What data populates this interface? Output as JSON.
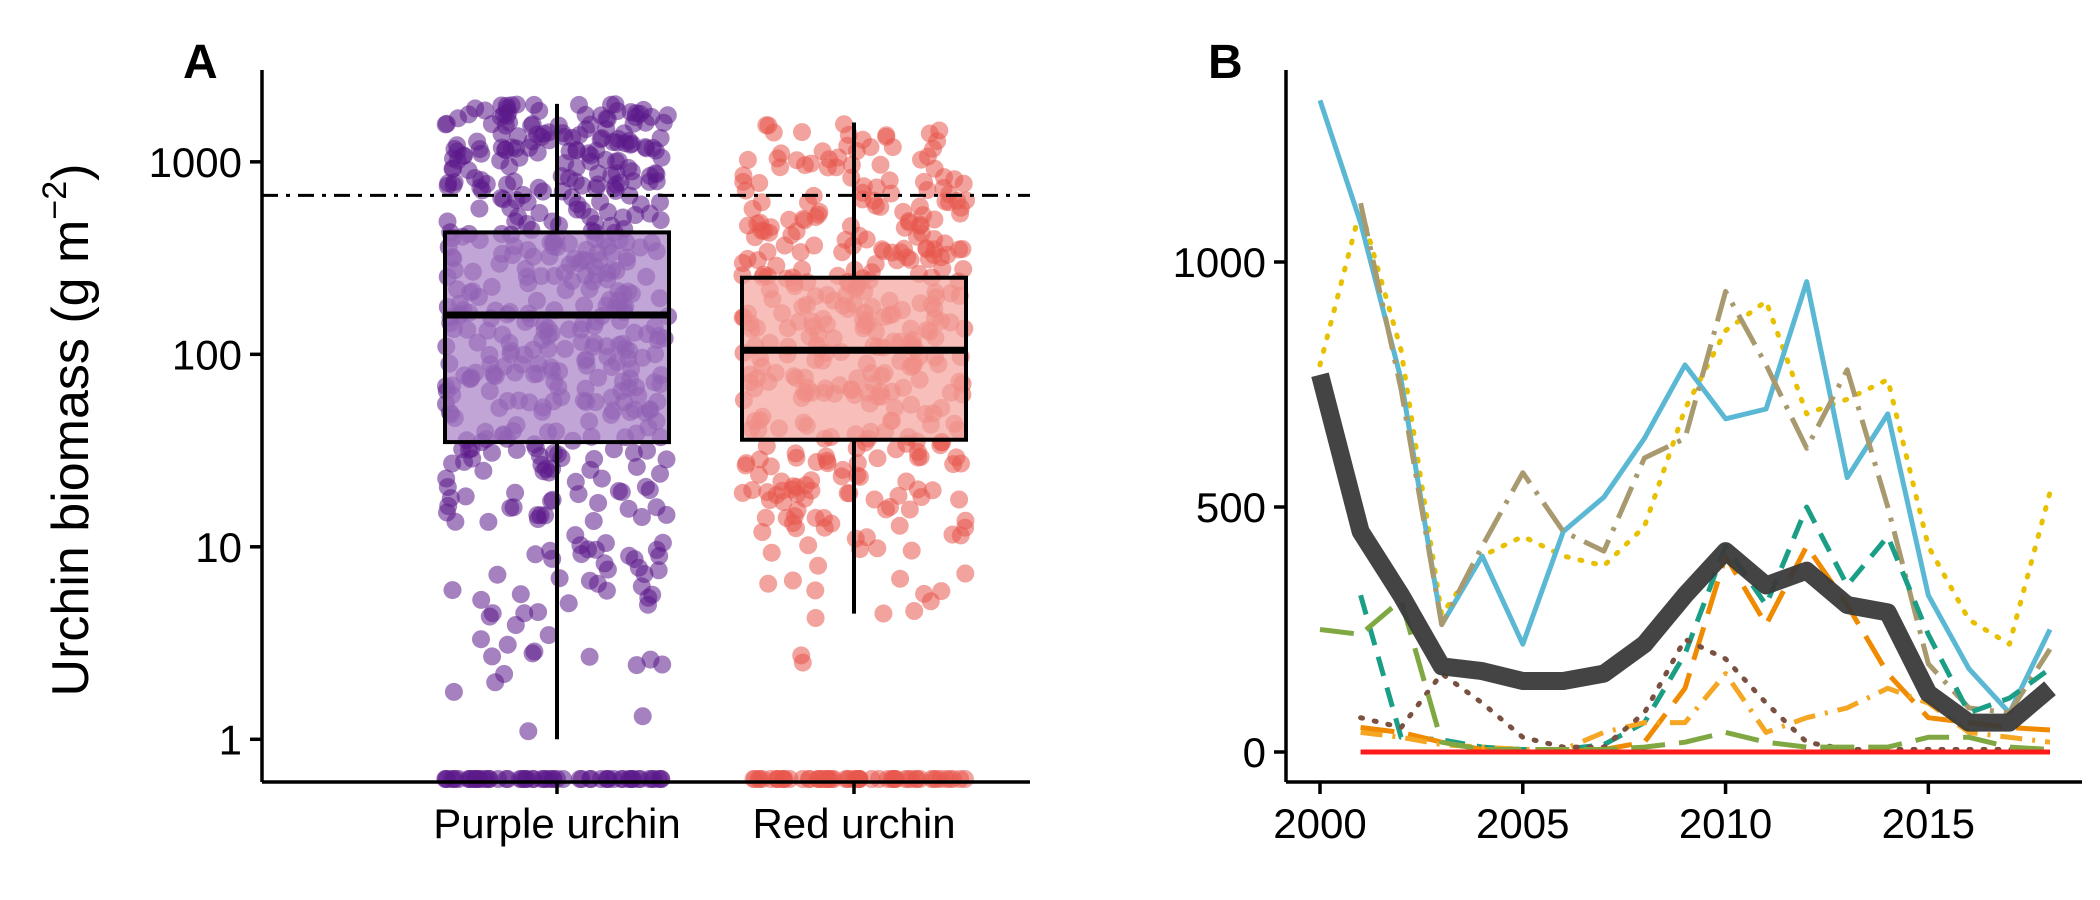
{
  "chart_data": [
    {
      "panel": "A",
      "type": "box",
      "ylabel": "Urchin biomass (g m⁻²)",
      "ylabel_main": "Urchin biomass (g m",
      "ylabel_sup": "−2",
      "ylabel_close": ")",
      "yscale": "log10",
      "ylim": [
        0.6,
        3000
      ],
      "yticks": [
        1,
        10,
        100,
        1000
      ],
      "ytick_labels": [
        "1",
        "10",
        "100",
        "1000"
      ],
      "categories": [
        "Purple urchin",
        "Red urchin"
      ],
      "reference_line": {
        "y": 670,
        "style": "dash-dot"
      },
      "grid": false,
      "series": [
        {
          "name": "Purple urchin",
          "color": "#5B1A8B",
          "box_fill": "#A67FC4",
          "whisker_low": 1,
          "q1": 35,
          "median": 160,
          "q3": 430,
          "whisker_high": 2000,
          "points_approx_n": 520,
          "zeros_shown_at_bottom": true,
          "point_range": [
            1,
            2000
          ]
        },
        {
          "name": "Red urchin",
          "color": "#E8574C",
          "box_fill": "#F3A39C",
          "whisker_low": 4.5,
          "q1": 36,
          "median": 105,
          "q3": 250,
          "whisker_high": 1600,
          "points_approx_n": 400,
          "zeros_shown_at_bottom": true,
          "point_range": [
            1.2,
            1700
          ]
        }
      ]
    },
    {
      "panel": "B",
      "type": "line",
      "xlim": [
        2000,
        2018
      ],
      "ylim": [
        -30,
        1400
      ],
      "xticks": [
        2000,
        2005,
        2010,
        2015
      ],
      "yticks": [
        0,
        500,
        1000
      ],
      "grid": false,
      "series": [
        {
          "color": "#E8C000",
          "dash": "dot",
          "width": 5,
          "x": [
            2000,
            2001,
            2002,
            2003,
            2004,
            2005,
            2006,
            2007,
            2008,
            2009,
            2010,
            2011,
            2012,
            2013,
            2014,
            2015,
            2016,
            2017,
            2018
          ],
          "y": [
            790,
            1110,
            820,
            280,
            400,
            440,
            400,
            380,
            460,
            700,
            860,
            920,
            690,
            720,
            760,
            420,
            270,
            220,
            530
          ]
        },
        {
          "color": "#5BB8D4",
          "dash": "solid",
          "width": 5,
          "x": [
            2000,
            2001,
            2002,
            2003,
            2004,
            2005,
            2006,
            2007,
            2008,
            2009,
            2010,
            2011,
            2012,
            2013,
            2014,
            2015,
            2016,
            2017,
            2018
          ],
          "y": [
            1330,
            1080,
            760,
            260,
            400,
            220,
            450,
            520,
            640,
            790,
            680,
            700,
            960,
            560,
            690,
            320,
            170,
            80,
            250
          ]
        },
        {
          "color": "#A89A6E",
          "dash": "longdash-dot",
          "width": 5,
          "x": [
            2001,
            2002,
            2003,
            2004,
            2005,
            2006,
            2007,
            2008,
            2009,
            2010,
            2011,
            2012,
            2013,
            2014,
            2015,
            2016,
            2017,
            2018
          ],
          "y": [
            1120,
            740,
            260,
            420,
            570,
            450,
            410,
            600,
            640,
            940,
            790,
            620,
            780,
            500,
            180,
            90,
            80,
            210
          ]
        },
        {
          "color": "#1A9E85",
          "dash": "dash",
          "width": 5,
          "x": [
            2001,
            2002,
            2003,
            2004,
            2005,
            2006,
            2007,
            2008,
            2009,
            2010,
            2011,
            2012,
            2013,
            2014,
            2015,
            2016,
            2017,
            2018
          ],
          "y": [
            320,
            30,
            25,
            10,
            5,
            5,
            15,
            60,
            200,
            420,
            300,
            500,
            340,
            440,
            240,
            80,
            110,
            170
          ]
        },
        {
          "color": "#F08A00",
          "dash": "longdash",
          "width": 5,
          "x": [
            2001,
            2002,
            2003,
            2004,
            2005,
            2006,
            2007,
            2008,
            2009,
            2010,
            2011,
            2012,
            2013,
            2014,
            2015,
            2016,
            2017,
            2018
          ],
          "y": [
            50,
            40,
            20,
            5,
            0,
            0,
            5,
            20,
            130,
            400,
            260,
            420,
            300,
            160,
            70,
            60,
            50,
            45
          ]
        },
        {
          "color": "#F5A623",
          "dash": "dash-dot",
          "width": 5,
          "x": [
            2001,
            2002,
            2003,
            2004,
            2005,
            2006,
            2007,
            2008,
            2009,
            2010,
            2011,
            2012,
            2013,
            2014,
            2015,
            2016,
            2017,
            2018
          ],
          "y": [
            40,
            30,
            15,
            10,
            5,
            5,
            40,
            60,
            60,
            160,
            40,
            70,
            90,
            130,
            100,
            40,
            30,
            20
          ]
        },
        {
          "color": "#7A5040",
          "dash": "dot",
          "width": 5,
          "x": [
            2001,
            2002,
            2003,
            2004,
            2005,
            2006,
            2007,
            2008,
            2009,
            2010,
            2011,
            2012,
            2013,
            2014,
            2015,
            2016,
            2017,
            2018
          ],
          "y": [
            70,
            50,
            160,
            100,
            30,
            10,
            10,
            80,
            230,
            190,
            100,
            20,
            5,
            5,
            5,
            5,
            5,
            5
          ]
        },
        {
          "color": "#7FA843",
          "dash": "longdash",
          "width": 5,
          "x": [
            2000,
            2001,
            2002,
            2003,
            2004,
            2005,
            2006,
            2007,
            2008,
            2009,
            2010,
            2011,
            2012,
            2013,
            2014,
            2015,
            2016,
            2017,
            2018
          ],
          "y": [
            250,
            240,
            310,
            20,
            5,
            5,
            5,
            5,
            10,
            20,
            40,
            20,
            10,
            10,
            10,
            30,
            30,
            10,
            5
          ]
        },
        {
          "color": "#FF1A1A",
          "dash": "solid",
          "width": 5,
          "x": [
            2001,
            2018
          ],
          "y": [
            0,
            0
          ]
        },
        {
          "color": "#3A3A3A",
          "dash": "solid",
          "width": 18,
          "opacity": 0.95,
          "x": [
            2000,
            2001,
            2002,
            2003,
            2004,
            2005,
            2006,
            2007,
            2008,
            2009,
            2010,
            2011,
            2012,
            2013,
            2014,
            2015,
            2016,
            2017,
            2018
          ],
          "y": [
            770,
            450,
            320,
            175,
            165,
            145,
            145,
            160,
            220,
            320,
            410,
            340,
            370,
            300,
            285,
            120,
            60,
            60,
            130
          ]
        }
      ]
    }
  ]
}
